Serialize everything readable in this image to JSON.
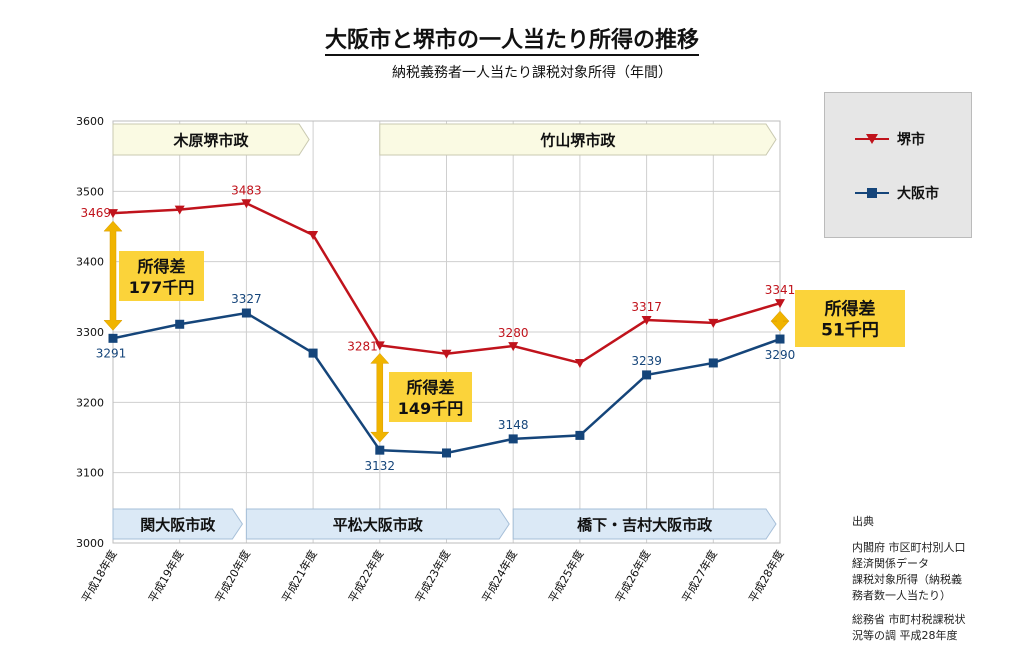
{
  "title": "大阪市と堺市の一人当たり所得の推移",
  "subtitle": "納税義務者一人当たり課税対象所得（年間）",
  "colors": {
    "sakai": "#c0131c",
    "osaka": "#15457a",
    "callout": "#fbd33a",
    "arrow": "#f0b400",
    "sakai_band": "#fafae3",
    "osaka_band": "#dbe9f6"
  },
  "chart_data": {
    "type": "line",
    "categories": [
      "平成18年度",
      "平成19年度",
      "平成20年度",
      "平成21年度",
      "平成22年度",
      "平成23年度",
      "平成24年度",
      "平成25年度",
      "平成26年度",
      "平成27年度",
      "平成28年度"
    ],
    "ylim": [
      3000,
      3600
    ],
    "yticks": [
      3000,
      3100,
      3200,
      3300,
      3400,
      3500,
      3600
    ],
    "grid": true,
    "legend": "right",
    "series": [
      {
        "name": "堺市",
        "marker": "triangle-down",
        "values": [
          3469,
          3474,
          3483,
          3438,
          3281,
          3269,
          3280,
          3256,
          3317,
          3313,
          3341
        ],
        "labels": [
          "3469",
          null,
          "3483",
          null,
          "3281",
          null,
          "3280",
          null,
          "3317",
          null,
          "3341"
        ]
      },
      {
        "name": "大阪市",
        "marker": "square",
        "values": [
          3291,
          3311,
          3327,
          3270,
          3132,
          3128,
          3148,
          3153,
          3239,
          3256,
          3290
        ],
        "labels": [
          "3291",
          null,
          "3327",
          null,
          "3132",
          null,
          "3148",
          null,
          "3239",
          null,
          "3290"
        ]
      }
    ],
    "bands_top": [
      {
        "label": "木原堺市政",
        "from": 0,
        "to": 3
      },
      {
        "label": "竹山堺市政",
        "from": 4,
        "to": 10
      }
    ],
    "bands_bottom": [
      {
        "label": "関大阪市政",
        "from": 0,
        "to": 2
      },
      {
        "label": "平松大阪市政",
        "from": 2,
        "to": 6
      },
      {
        "label": "橋下・吉村大阪市政",
        "from": 6,
        "to": 10
      }
    ],
    "gap_annotations": [
      {
        "index": 0,
        "line1": "所得差",
        "line2": "177千円"
      },
      {
        "index": 4,
        "line1": "所得差",
        "line2": "149千円"
      },
      {
        "index": 10,
        "line1": "所得差",
        "line2": "51千円"
      }
    ]
  },
  "source": {
    "heading": "出典",
    "block1": [
      "内閣府 市区町村別人口",
      "経済関係データ",
      "課税対象所得（納税義",
      "務者数一人当たり）"
    ],
    "block2": [
      "総務省 市町村税課税状",
      "況等の調 平成28年度"
    ]
  }
}
